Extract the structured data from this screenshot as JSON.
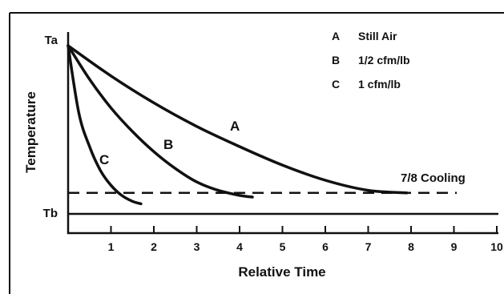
{
  "chart_data": {
    "type": "line",
    "xlabel": "Relative Time",
    "ylabel": "Temperature",
    "x_ticks": [
      1,
      2,
      3,
      4,
      5,
      6,
      7,
      8,
      9,
      10
    ],
    "xlim": [
      0,
      10
    ],
    "y_levels": {
      "Ta": 1,
      "Tb": 0
    },
    "ylim": [
      -0.25,
      1.1
    ],
    "legend": [
      {
        "key": "A",
        "text": "Still Air"
      },
      {
        "key": "B",
        "text": "1/2 cfm/lb"
      },
      {
        "key": "C",
        "text": "1 cfm/lb"
      }
    ],
    "series": [
      {
        "name": "A",
        "x": [
          0,
          1,
          2,
          3,
          4,
          5,
          6,
          7,
          7.9
        ],
        "y": [
          1,
          0.82,
          0.66,
          0.52,
          0.4,
          0.29,
          0.2,
          0.14,
          0.125
        ]
      },
      {
        "name": "B",
        "x": [
          0,
          0.5,
          1,
          1.5,
          2,
          2.5,
          3,
          3.5,
          4,
          4.3
        ],
        "y": [
          1,
          0.8,
          0.63,
          0.49,
          0.37,
          0.27,
          0.19,
          0.14,
          0.11,
          0.1
        ]
      },
      {
        "name": "C",
        "x": [
          0,
          0.25,
          0.5,
          0.75,
          1,
          1.25,
          1.5,
          1.7
        ],
        "y": [
          1,
          0.6,
          0.4,
          0.26,
          0.17,
          0.11,
          0.075,
          0.06
        ]
      }
    ],
    "reference_line": {
      "label": "7/8 Cooling",
      "y": 0.125
    }
  }
}
